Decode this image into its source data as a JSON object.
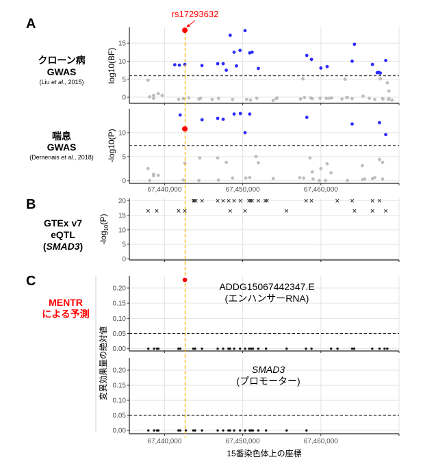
{
  "figure": {
    "panel_letters": [
      "A",
      "B",
      "C"
    ],
    "crohn": {
      "title": "クローン病",
      "sub": "GWAS",
      "cite_pre": "(Liu ",
      "cite_it": "et al.",
      "cite_post": ", 2015)"
    },
    "asthma": {
      "title": "喘息",
      "sub": "GWAS",
      "cite_pre": "(Demenais ",
      "cite_it": "et al.",
      "cite_post": ", 2018)"
    },
    "eqtl": {
      "line1": "GTEx v7",
      "line2": "eQTL",
      "line3_pre": "(",
      "line3_it": "SMAD3",
      "line3_post": ")"
    },
    "mentr": {
      "line1": "MENTR",
      "line2": "による予測",
      "color": "#ff0000"
    },
    "snp_label": "rs17293632",
    "x_axis_title": "15番染色体上の座標",
    "c_y_title": "変異効果量の絶対値",
    "x_tick_labels": [
      "67,440,000",
      "67,450,000",
      "67,460,000"
    ]
  },
  "colors": {
    "blue": "#2b2bff",
    "gray": "#bdbdbd",
    "red": "#ff0000",
    "orange": "#ffb300",
    "black": "#111111"
  },
  "chart_data": [
    {
      "id": "crohn",
      "type": "scatter",
      "ylabel": "log10(BF)",
      "xlim": [
        67435500,
        67470000
      ],
      "x_ticks": [
        67440000,
        67450000,
        67460000,
        67470000
      ],
      "ylim": [
        -1.7,
        19.4
      ],
      "y_ticks": [
        0,
        5,
        10,
        15
      ],
      "y_tick_labels": [
        "0",
        "5",
        "10",
        "15"
      ],
      "threshold": 6,
      "highlight": [
        67442600,
        18.6
      ],
      "blue": [
        [
          67441310,
          9
        ],
        [
          67441900,
          8.9
        ],
        [
          67442600,
          9.1
        ],
        [
          67444790,
          8.8
        ],
        [
          67446800,
          9.3
        ],
        [
          67447500,
          9.3
        ],
        [
          67447900,
          7.5
        ],
        [
          67448400,
          17.2
        ],
        [
          67448900,
          12.5
        ],
        [
          67449200,
          8.7
        ],
        [
          67449660,
          13
        ],
        [
          67450300,
          18.5
        ],
        [
          67450900,
          12.3
        ],
        [
          67451200,
          12.5
        ],
        [
          67452000,
          8
        ],
        [
          67458200,
          11.6
        ],
        [
          67458800,
          10.5
        ],
        [
          67460000,
          8.1
        ],
        [
          67460800,
          8.5
        ],
        [
          67464000,
          10
        ],
        [
          67464300,
          14.7
        ],
        [
          67466600,
          9.1
        ],
        [
          67467200,
          6.8
        ],
        [
          67467400,
          6.9
        ],
        [
          67467600,
          6.7
        ],
        [
          67468300,
          10.2
        ]
      ],
      "gray": [
        [
          67437900,
          4.7
        ],
        [
          67438100,
          0.1
        ],
        [
          67438600,
          0.5
        ],
        [
          67438600,
          -0.3
        ],
        [
          67439200,
          1.0
        ],
        [
          67439700,
          0.5
        ],
        [
          67441800,
          -0.6
        ],
        [
          67442400,
          -0.4
        ],
        [
          67443100,
          -0.2
        ],
        [
          67444400,
          -0.5
        ],
        [
          67444600,
          -0.3
        ],
        [
          67446100,
          -0.6
        ],
        [
          67446900,
          -0.3
        ],
        [
          67448700,
          -0.6
        ],
        [
          67450500,
          -0.6
        ],
        [
          67451000,
          -0.8
        ],
        [
          67451800,
          -0.3
        ],
        [
          67453900,
          -0.9
        ],
        [
          67454300,
          -0.4
        ],
        [
          67454400,
          -0.2
        ],
        [
          67457400,
          -0.5
        ],
        [
          67457700,
          5.1
        ],
        [
          67457900,
          -0.1
        ],
        [
          67458700,
          -0.2
        ],
        [
          67458900,
          -0.4
        ],
        [
          67459900,
          -0.3
        ],
        [
          67460700,
          -0.3
        ],
        [
          67461100,
          -0.3
        ],
        [
          67461400,
          -0.2
        ],
        [
          67462700,
          -0.5
        ],
        [
          67463100,
          5.0
        ],
        [
          67463300,
          -0.1
        ],
        [
          67463400,
          -0.1
        ],
        [
          67464000,
          -0.4
        ],
        [
          67465400,
          0.3
        ],
        [
          67466200,
          -0.3
        ],
        [
          67466900,
          -0.6
        ],
        [
          67467600,
          5.1
        ],
        [
          67467900,
          -0.4
        ],
        [
          67467950,
          -0.5
        ],
        [
          67468500,
          4.0
        ],
        [
          67468700,
          1.7
        ],
        [
          67468700,
          -0.4
        ],
        [
          67468650,
          -0.6
        ],
        [
          67469100,
          -0.8
        ]
      ]
    },
    {
      "id": "asthma",
      "type": "scatter",
      "ylabel": "-log10(P)",
      "xlim": [
        67435500,
        67470000
      ],
      "x_ticks": [
        67440000,
        67450000,
        67460000,
        67470000
      ],
      "ylim": [
        -0.6,
        15
      ],
      "y_ticks": [
        0,
        5,
        10
      ],
      "y_tick_labels": [
        "0",
        "5",
        "10"
      ],
      "threshold": 7.3,
      "highlight": [
        67442600,
        10.8
      ],
      "blue": [
        [
          67442000,
          13.7
        ],
        [
          67444800,
          12.7
        ],
        [
          67446800,
          13
        ],
        [
          67447500,
          12.8
        ],
        [
          67448900,
          13.9
        ],
        [
          67449700,
          14
        ],
        [
          67450300,
          10
        ],
        [
          67450900,
          13.9
        ],
        [
          67458200,
          13.2
        ],
        [
          67464000,
          11.8
        ],
        [
          67467500,
          12.1
        ],
        [
          67468300,
          9.6
        ]
      ],
      "gray": [
        [
          67437900,
          2.5
        ],
        [
          67438100,
          0
        ],
        [
          67438600,
          1.0
        ],
        [
          67438600,
          1.3
        ],
        [
          67439200,
          1.1
        ],
        [
          67442400,
          0.1
        ],
        [
          67442600,
          3.6
        ],
        [
          67444400,
          0
        ],
        [
          67444500,
          4.7
        ],
        [
          67446800,
          4.7
        ],
        [
          67446900,
          0.1
        ],
        [
          67447900,
          3.8
        ],
        [
          67448700,
          0.5
        ],
        [
          67450400,
          0.5
        ],
        [
          67450900,
          0.6
        ],
        [
          67451700,
          5.0
        ],
        [
          67452000,
          3.7
        ],
        [
          67453900,
          0.4
        ],
        [
          67457300,
          0.6
        ],
        [
          67457800,
          0.5
        ],
        [
          67458600,
          4.7
        ],
        [
          67458900,
          1.8
        ],
        [
          67459000,
          0.3
        ],
        [
          67459800,
          0
        ],
        [
          67460000,
          2.5
        ],
        [
          67460600,
          0
        ],
        [
          67460800,
          3.5
        ],
        [
          67461300,
          1.6
        ],
        [
          67463400,
          0
        ],
        [
          67465300,
          3.1
        ],
        [
          67465350,
          0.2
        ],
        [
          67465600,
          0.3
        ],
        [
          67466600,
          0.4
        ],
        [
          67466900,
          0.6
        ],
        [
          67467500,
          4.4
        ],
        [
          67467900,
          3.8
        ],
        [
          67467900,
          0.3
        ]
      ]
    },
    {
      "id": "eqtl",
      "type": "scatter",
      "ylabel_pre": "-log",
      "ylabel_sub": "10",
      "ylabel_post": "(P)",
      "xlim": [
        67435500,
        67470000
      ],
      "x_ticks": [
        67440000,
        67450000,
        67460000,
        67470000
      ],
      "ylim": [
        -0.4,
        20.8
      ],
      "y_ticks": [
        0,
        5,
        10,
        15,
        20
      ],
      "y_tick_labels": [
        "0",
        "5",
        "10",
        "15",
        "20"
      ],
      "crosses": [
        [
          67443700,
          20
        ],
        [
          67443800,
          20
        ],
        [
          67444000,
          20
        ],
        [
          67444800,
          20
        ],
        [
          67446800,
          20
        ],
        [
          67447500,
          20
        ],
        [
          67448200,
          20
        ],
        [
          67448900,
          20
        ],
        [
          67449700,
          20
        ],
        [
          67450800,
          20
        ],
        [
          67451000,
          20
        ],
        [
          67451200,
          20
        ],
        [
          67452000,
          20
        ],
        [
          67452900,
          20
        ],
        [
          67453100,
          20
        ],
        [
          67458100,
          20
        ],
        [
          67458800,
          20
        ],
        [
          67462100,
          20
        ],
        [
          67464000,
          20
        ],
        [
          67466600,
          20
        ],
        [
          67467500,
          20
        ],
        [
          67437900,
          16.5
        ],
        [
          67439000,
          16.5
        ],
        [
          67441800,
          16.5
        ],
        [
          67442600,
          16.5
        ],
        [
          67448400,
          16.5
        ],
        [
          67450300,
          16.5
        ],
        [
          67455600,
          16.5
        ],
        [
          67464300,
          16.5
        ],
        [
          67466600,
          16.5
        ],
        [
          67468300,
          16.5
        ]
      ]
    },
    {
      "id": "mentr-enhancer",
      "type": "scatter",
      "ylabel": "変異効果量の絶対値",
      "title_line1": "ADDG15067442347.E",
      "title_line2": "(エンハンサーRNA)",
      "xlim": [
        67435500,
        67470000
      ],
      "x_ticks": [
        67440000,
        67450000,
        67460000,
        67470000
      ],
      "ylim": [
        -0.0075,
        0.2406
      ],
      "y_ticks": [
        0,
        0.05,
        0.1,
        0.15,
        0.2
      ],
      "y_tick_labels": [
        "0.00",
        "0.05",
        "0.10",
        "0.15",
        "0.20"
      ],
      "threshold": 0.05,
      "highlight": [
        67442600,
        0.227
      ],
      "black": [
        [
          67437930,
          0
        ],
        [
          67438660,
          0
        ],
        [
          67439040,
          0
        ],
        [
          67439210,
          0
        ],
        [
          67441780,
          0
        ],
        [
          67442010,
          0
        ],
        [
          67443680,
          0
        ],
        [
          67443910,
          0
        ],
        [
          67444790,
          0
        ],
        [
          67446800,
          0
        ],
        [
          67447500,
          0
        ],
        [
          67448180,
          0
        ],
        [
          67448380,
          0
        ],
        [
          67448910,
          0
        ],
        [
          67449660,
          0
        ],
        [
          67450310,
          0
        ],
        [
          67450830,
          0
        ],
        [
          67451070,
          0
        ],
        [
          67451300,
          0
        ],
        [
          67452000,
          0
        ],
        [
          67452990,
          0
        ],
        [
          67455620,
          0
        ],
        [
          67458100,
          0
        ],
        [
          67458800,
          0
        ],
        [
          67461310,
          0
        ],
        [
          67462130,
          0
        ],
        [
          67464000,
          0
        ],
        [
          67464260,
          0
        ],
        [
          67466570,
          0
        ],
        [
          67467500,
          0
        ],
        [
          67468150,
          0
        ],
        [
          67468500,
          0
        ]
      ]
    },
    {
      "id": "mentr-promoter",
      "type": "scatter",
      "ylabel": "変異効果量の絶対値",
      "title_line1": "SMAD3",
      "title_line2": "(プロモーター)",
      "xlim": [
        67435500,
        67470000
      ],
      "x_ticks": [
        67440000,
        67450000,
        67460000,
        67470000
      ],
      "ylim": [
        -0.011,
        0.241
      ],
      "y_ticks": [
        0,
        0.05,
        0.1,
        0.15,
        0.2
      ],
      "y_tick_labels": [
        "0.00",
        "0.05",
        "0.10",
        "0.15",
        "0.20"
      ],
      "threshold": 0.05,
      "black": [
        [
          67437930,
          0
        ],
        [
          67438660,
          0
        ],
        [
          67439040,
          0
        ],
        [
          67439210,
          0
        ],
        [
          67441780,
          0
        ],
        [
          67442010,
          0
        ],
        [
          67442720,
          0
        ],
        [
          67443680,
          0
        ],
        [
          67443910,
          0
        ],
        [
          67444790,
          0
        ],
        [
          67446800,
          0
        ],
        [
          67447500,
          0
        ],
        [
          67448180,
          0
        ],
        [
          67448380,
          0
        ],
        [
          67448910,
          0
        ],
        [
          67449660,
          0
        ],
        [
          67450310,
          0
        ],
        [
          67450890,
          0
        ],
        [
          67451070,
          0
        ],
        [
          67451300,
          0
        ],
        [
          67452000,
          0
        ],
        [
          67452990,
          0
        ],
        [
          67455620,
          0
        ],
        [
          67458160,
          0
        ]
      ]
    }
  ]
}
